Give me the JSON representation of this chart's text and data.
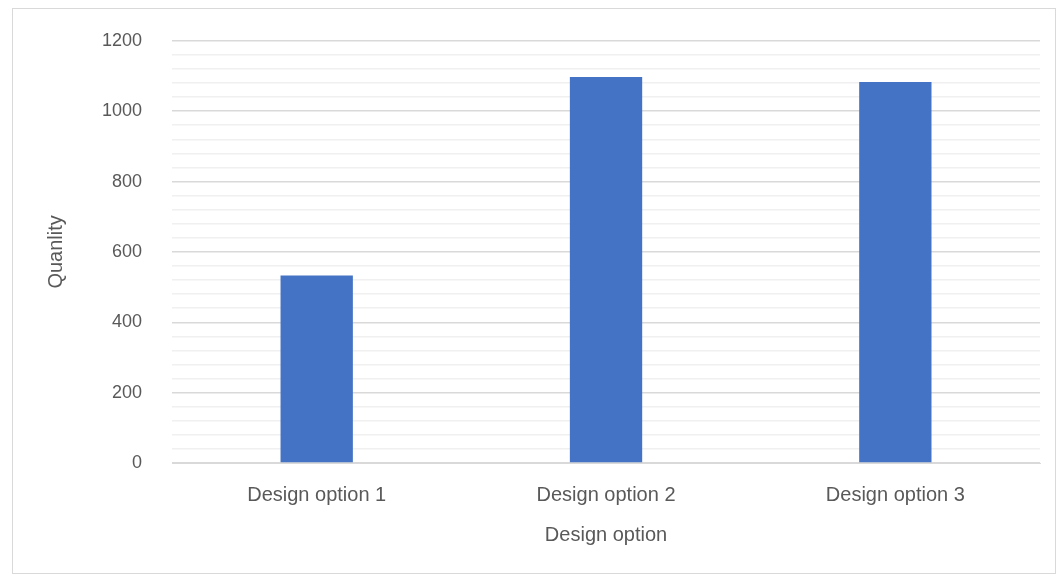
{
  "chart_data": {
    "type": "bar",
    "xlabel": "Design option",
    "ylabel": "Quanlity",
    "categories": [
      "Design option 1",
      "Design option 2",
      "Design option 3"
    ],
    "values": [
      533,
      1097,
      1083
    ],
    "color": "#4472c4",
    "ylim": [
      0,
      1200
    ],
    "yticks": [
      0,
      {
        "value": 40,
        "label": null
      },
      {
        "value": 80,
        "label": null
      },
      {
        "value": 120,
        "label": null
      },
      {
        "value": 160,
        "label": null
      },
      200,
      {
        "value": 240,
        "label": null
      },
      {
        "value": 280,
        "label": null
      },
      {
        "value": 320,
        "label": null
      },
      {
        "value": 360,
        "label": null
      },
      400,
      {
        "value": 440,
        "label": null
      },
      {
        "value": 480,
        "label": null
      },
      {
        "value": 520,
        "label": null
      },
      {
        "value": 560,
        "label": null
      },
      600,
      {
        "value": 640,
        "label": null
      },
      {
        "value": 680,
        "label": null
      },
      {
        "value": 720,
        "label": null
      },
      {
        "value": 760,
        "label": null
      },
      800,
      {
        "value": 840,
        "label": null
      },
      {
        "value": 880,
        "label": null
      },
      {
        "value": 920,
        "label": null
      },
      {
        "value": 960,
        "label": null
      },
      1000,
      {
        "value": 1040,
        "label": null
      },
      {
        "value": 1080,
        "label": null
      },
      {
        "value": 1120,
        "label": null
      },
      {
        "value": 1160,
        "label": null
      },
      1200
    ],
    "grid": "y",
    "legend": false
  }
}
